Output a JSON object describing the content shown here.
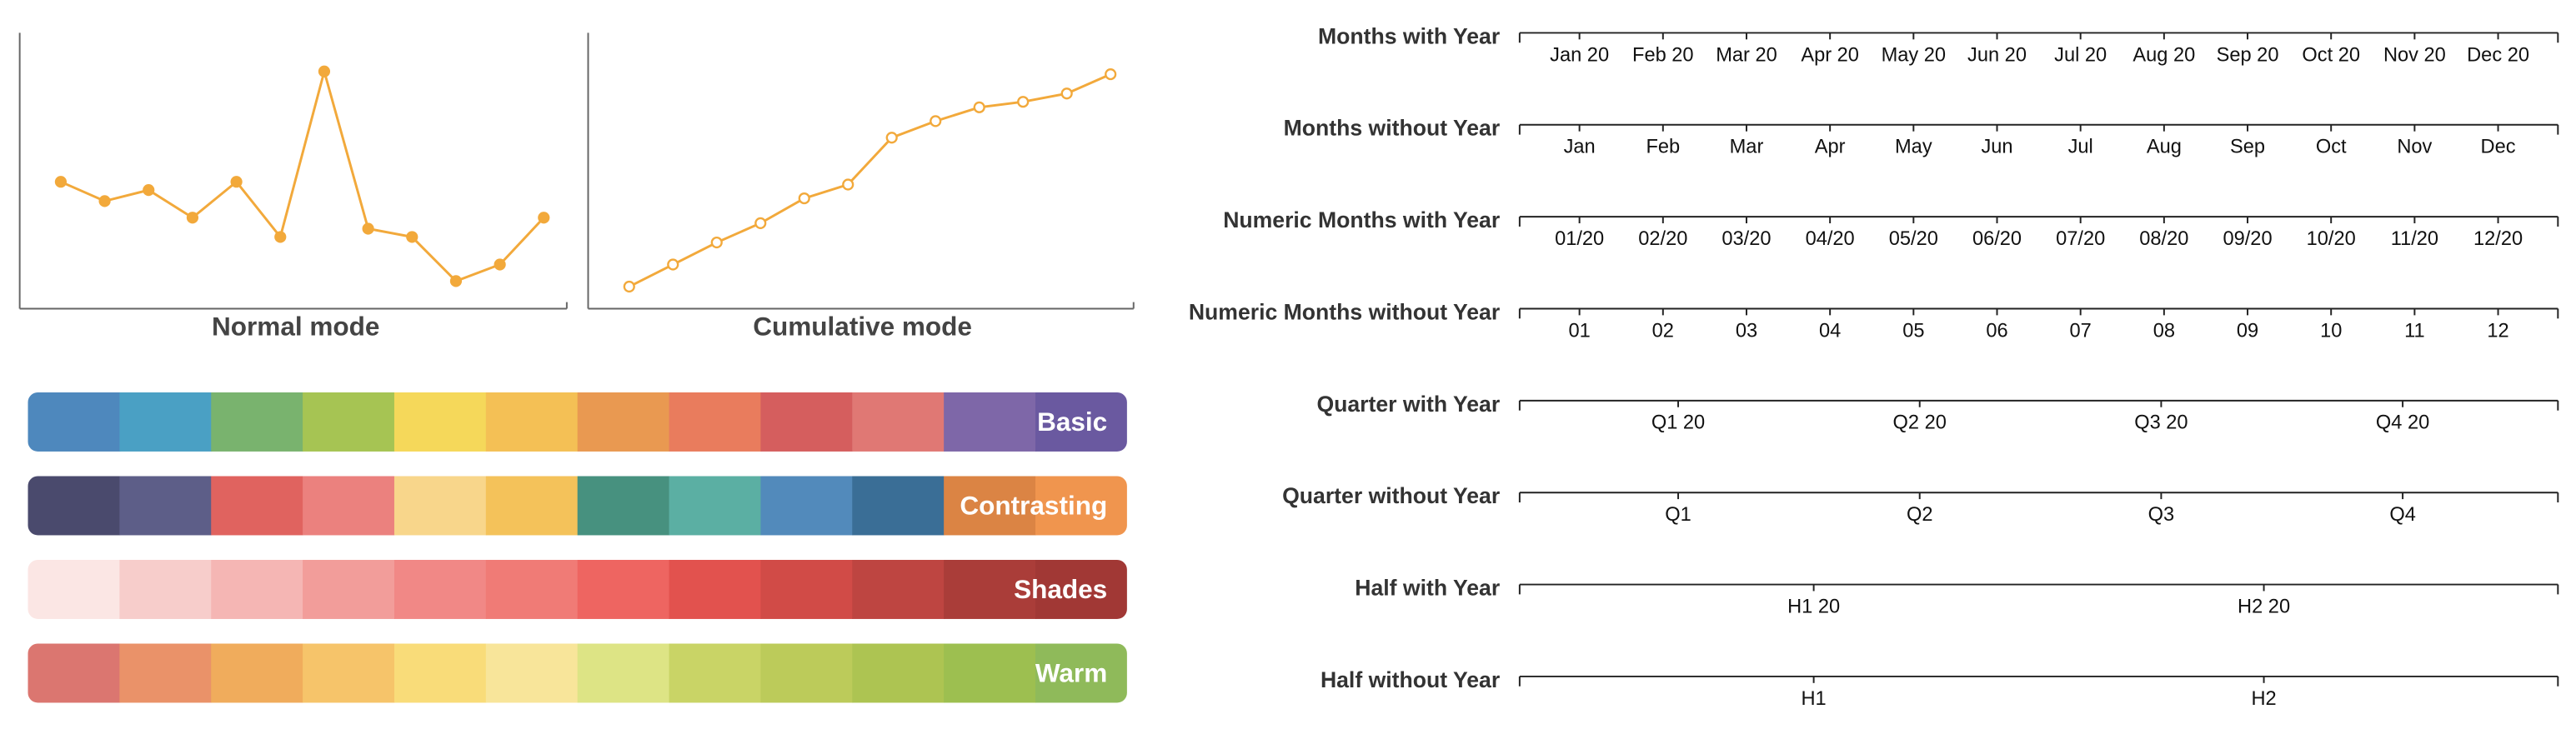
{
  "chart_data": [
    {
      "type": "line",
      "title": "Normal mode",
      "values": [
        46,
        39,
        43,
        33,
        46,
        26,
        86,
        29,
        26,
        10,
        16,
        33
      ],
      "ylim": [
        0,
        100
      ],
      "color": "#f2a93b",
      "marker": "filled"
    },
    {
      "type": "line",
      "title": "Cumulative mode",
      "values": [
        8,
        16,
        24,
        31,
        40,
        45,
        62,
        68,
        73,
        75,
        78,
        85
      ],
      "ylim": [
        0,
        100
      ],
      "color": "#f2a93b",
      "marker": "open"
    }
  ],
  "palettes": [
    {
      "name": "Basic",
      "colors": [
        "#4e88bd",
        "#4aa0c4",
        "#79b36e",
        "#a6c453",
        "#f5d85a",
        "#f4c055",
        "#e99951",
        "#e97c5d",
        "#d55e5e",
        "#e07874",
        "#7e67a8",
        "#6a59a0"
      ]
    },
    {
      "name": "Contrasting",
      "colors": [
        "#4a4a6d",
        "#5d5e88",
        "#e0635f",
        "#eb817e",
        "#f8d68b",
        "#f4c25a",
        "#47917f",
        "#5bafa3",
        "#528abb",
        "#3a6e96",
        "#db8444",
        "#f0954e"
      ]
    },
    {
      "name": "Shades",
      "colors": [
        "#fbe6e4",
        "#f7cdcb",
        "#f5b6b4",
        "#f29d9a",
        "#f18886",
        "#f07b76",
        "#ee6561",
        "#e2524e",
        "#d14b47",
        "#be4541",
        "#aa3d39",
        "#a13835"
      ]
    },
    {
      "name": "Warm",
      "colors": [
        "#db7670",
        "#ea9269",
        "#f0ac5c",
        "#f6c46a",
        "#f9dc79",
        "#f8e59a",
        "#dde485",
        "#c9d466",
        "#bccb5a",
        "#adc452",
        "#9dbf50",
        "#8fba5a"
      ]
    }
  ],
  "timeline_axes": [
    {
      "label": "Months with Year",
      "ticks": [
        "Jan 20",
        "Feb 20",
        "Mar 20",
        "Apr 20",
        "May 20",
        "Jun 20",
        "Jul 20",
        "Aug 20",
        "Sep 20",
        "Oct 20",
        "Nov 20",
        "Dec 20"
      ]
    },
    {
      "label": "Months without Year",
      "ticks": [
        "Jan",
        "Feb",
        "Mar",
        "Apr",
        "May",
        "Jun",
        "Jul",
        "Aug",
        "Sep",
        "Oct",
        "Nov",
        "Dec"
      ]
    },
    {
      "label": "Numeric Months with Year",
      "ticks": [
        "01/20",
        "02/20",
        "03/20",
        "04/20",
        "05/20",
        "06/20",
        "07/20",
        "08/20",
        "09/20",
        "10/20",
        "11/20",
        "12/20"
      ]
    },
    {
      "label": "Numeric Months without Year",
      "ticks": [
        "01",
        "02",
        "03",
        "04",
        "05",
        "06",
        "07",
        "08",
        "09",
        "10",
        "11",
        "12"
      ]
    },
    {
      "label": "Quarter with Year",
      "ticks": [
        "Q1 20",
        "Q2 20",
        "Q3 20",
        "Q4 20"
      ]
    },
    {
      "label": "Quarter without Year",
      "ticks": [
        "Q1",
        "Q2",
        "Q3",
        "Q4"
      ]
    },
    {
      "label": "Half with Year",
      "ticks": [
        "H1 20",
        "H2 20"
      ]
    },
    {
      "label": "Half without Year",
      "ticks": [
        "H1",
        "H2"
      ]
    }
  ]
}
